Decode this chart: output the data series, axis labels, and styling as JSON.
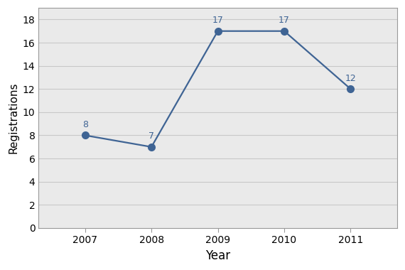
{
  "years": [
    2007,
    2008,
    2009,
    2010,
    2011
  ],
  "values": [
    8,
    7,
    17,
    17,
    12
  ],
  "line_color": "#3F6494",
  "marker_color": "#3F6494",
  "marker_style": "o",
  "marker_size": 7,
  "line_width": 1.6,
  "xlabel": "Year",
  "ylabel": "Registrations",
  "xlabel_fontsize": 12,
  "ylabel_fontsize": 11,
  "tick_fontsize": 10,
  "annotation_fontsize": 9,
  "ylim": [
    0,
    19
  ],
  "yticks": [
    0,
    2,
    4,
    6,
    8,
    10,
    12,
    14,
    16,
    18
  ],
  "grid_color": "#C8C8C8",
  "plot_bg_color": "#EAEAEA",
  "figure_bg_color": "#FFFFFF",
  "spine_color": "#999999",
  "annotation_color": "#3F6494"
}
